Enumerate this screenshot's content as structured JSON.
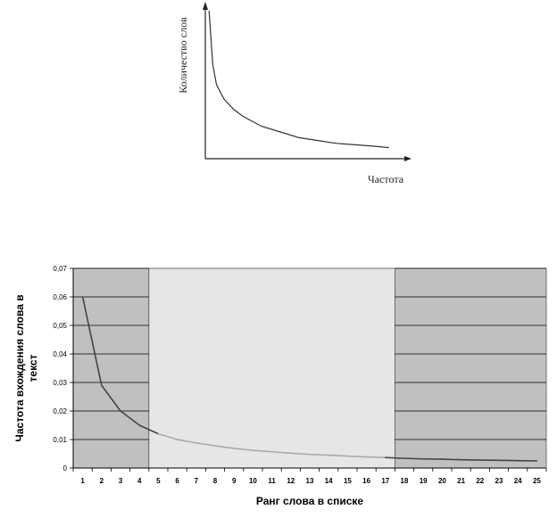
{
  "chart_data": [
    {
      "type": "line",
      "title": "",
      "xlabel": "Частота",
      "ylabel": "Количество слов",
      "grid": false,
      "legend": "none",
      "ticks": false,
      "series": [
        {
          "x": [
            0.02,
            0.04,
            0.06,
            0.1,
            0.15,
            0.2,
            0.3,
            0.4,
            0.5,
            0.6,
            0.7,
            0.8,
            0.9,
            0.98
          ],
          "values": [
            1.0,
            0.62,
            0.48,
            0.38,
            0.31,
            0.26,
            0.19,
            0.15,
            0.11,
            0.09,
            0.07,
            0.06,
            0.05,
            0.04
          ]
        }
      ],
      "colors": {
        "line": "#333333",
        "axis": "#222222"
      }
    },
    {
      "type": "line",
      "title": "",
      "xlabel": "Ранг слова в списке",
      "ylabel": "Частота вхождения слова в текст",
      "ylim": [
        0,
        0.07
      ],
      "grid": true,
      "legend": "none",
      "categories": [
        "1",
        "2",
        "3",
        "4",
        "5",
        "6",
        "7",
        "8",
        "9",
        "10",
        "11",
        "12",
        "13",
        "14",
        "15",
        "16",
        "17",
        "18",
        "19",
        "20",
        "21",
        "22",
        "23",
        "24",
        "25"
      ],
      "y_ticks": [
        "0",
        "0,01",
        "0,02",
        "0,03",
        "0,04",
        "0,05",
        "0,06",
        "0,07"
      ],
      "y_tick_values": [
        0,
        0.01,
        0.02,
        0.03,
        0.04,
        0.05,
        0.06,
        0.07
      ],
      "series": [
        {
          "values": [
            0.06,
            0.029,
            0.02,
            0.015,
            0.012,
            0.01,
            0.0088,
            0.0078,
            0.0069,
            0.0062,
            0.0057,
            0.0052,
            0.0048,
            0.0045,
            0.0042,
            0.0039,
            0.0037,
            0.0034,
            0.0032,
            0.0031,
            0.0029,
            0.0028,
            0.0027,
            0.0026,
            0.0025
          ]
        }
      ],
      "regions": [
        {
          "from": 0.5,
          "to": 4.5,
          "shade": "dark"
        },
        {
          "from": 4.5,
          "to": 17.5,
          "shade": "light"
        },
        {
          "from": 17.5,
          "to": 25.5,
          "shade": "dark"
        }
      ],
      "colors": {
        "dark_region": "#c0c0c0",
        "light_region": "#e6e6e6",
        "line_dark": "#444444",
        "line_light": "#aaaaaa",
        "grid": "#000000"
      }
    }
  ]
}
